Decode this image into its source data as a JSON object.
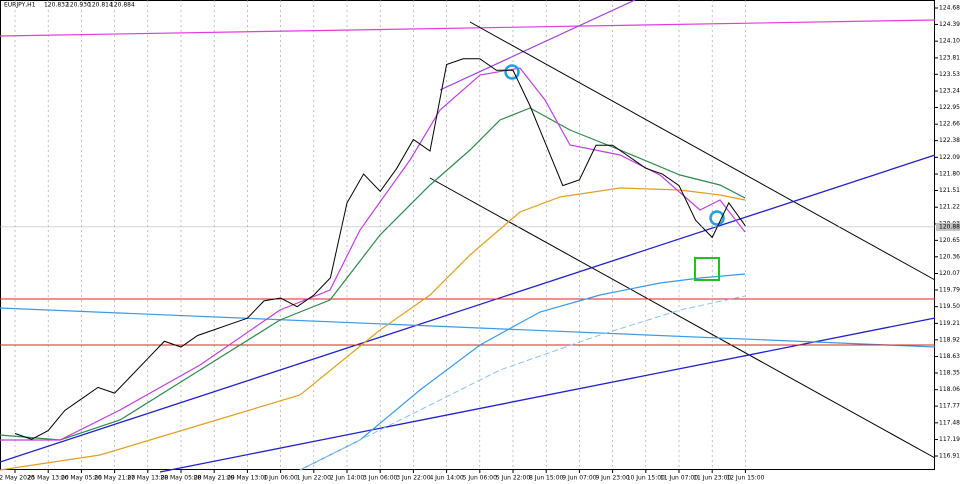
{
  "chart_data": {
    "type": "line",
    "header": {
      "symbol": "EURJPY,H1",
      "open": "120.832",
      "high": "120.930",
      "low": "120.814",
      "close": "120.884"
    },
    "categories": [
      "22 May 2020",
      null,
      "25 May 13:00",
      null,
      "26 May 05:00",
      null,
      "26 May 21:00",
      null,
      "27 May 13:00",
      null,
      "28 May 05:00",
      null,
      "28 May 21:00",
      null,
      "29 May 13:00",
      null,
      "1 Jun 06:00",
      null,
      "1 Jun 22:00",
      null,
      "2 Jun 14:00",
      null,
      "3 Jun 06:00",
      null,
      "3 Jun 22:00",
      null,
      "4 Jun 14:00",
      null,
      "5 Jun 06:00",
      null,
      "5 Jun 22:00",
      null,
      "8 Jun 15:00",
      null,
      "9 Jun 07:00",
      null,
      "9 Jun 23:00",
      null,
      "10 Jun 15:00",
      null,
      "11 Jun 07:00",
      null,
      "11 Jun 23:00",
      null,
      "12 Jun 15:00"
    ],
    "series": [
      {
        "name": "EURJPY",
        "color": "#000000",
        "values": [
          117.3,
          117.2,
          117.35,
          117.7,
          117.9,
          118.1,
          118.0,
          118.3,
          118.6,
          118.9,
          118.8,
          119.0,
          119.1,
          119.2,
          119.3,
          119.6,
          119.65,
          119.5,
          119.7,
          120.0,
          121.3,
          121.8,
          121.5,
          121.9,
          122.4,
          122.2,
          123.7,
          123.8,
          123.8,
          123.6,
          123.6,
          123.0,
          122.3,
          121.6,
          121.7,
          122.3,
          122.3,
          122.1,
          121.9,
          121.8,
          121.6,
          121.0,
          120.7,
          121.3,
          120.9
        ]
      }
    ],
    "current_price": 120.884,
    "ylim": [
      116.667,
      124.819
    ],
    "yticks": [
      {
        "value": 124.68,
        "label": "124.680"
      },
      124.395,
      124.105,
      123.815,
      {
        "value": 123.53,
        "label": "123.530"
      },
      123.24,
      122.955,
      122.665,
      {
        "value": 122.38,
        "label": "122.380"
      },
      {
        "value": 122.09,
        "label": "122.090"
      },
      {
        "value": 121.8,
        "label": "121.800"
      },
      121.515,
      121.225,
      120.935,
      {
        "value": 120.65,
        "label": "120.650"
      },
      120.365,
      120.075,
      {
        "value": 119.79,
        "label": "119.790"
      },
      {
        "value": 119.5,
        "label": "119.500"
      },
      {
        "value": 119.21,
        "label": "119.210"
      },
      118.925,
      118.635,
      {
        "value": 118.35,
        "label": "118.350"
      },
      {
        "value": 118.06,
        "label": "118.060"
      },
      117.775,
      117.485,
      117.195,
      {
        "value": 116.91,
        "label": "116.910"
      }
    ]
  }
}
